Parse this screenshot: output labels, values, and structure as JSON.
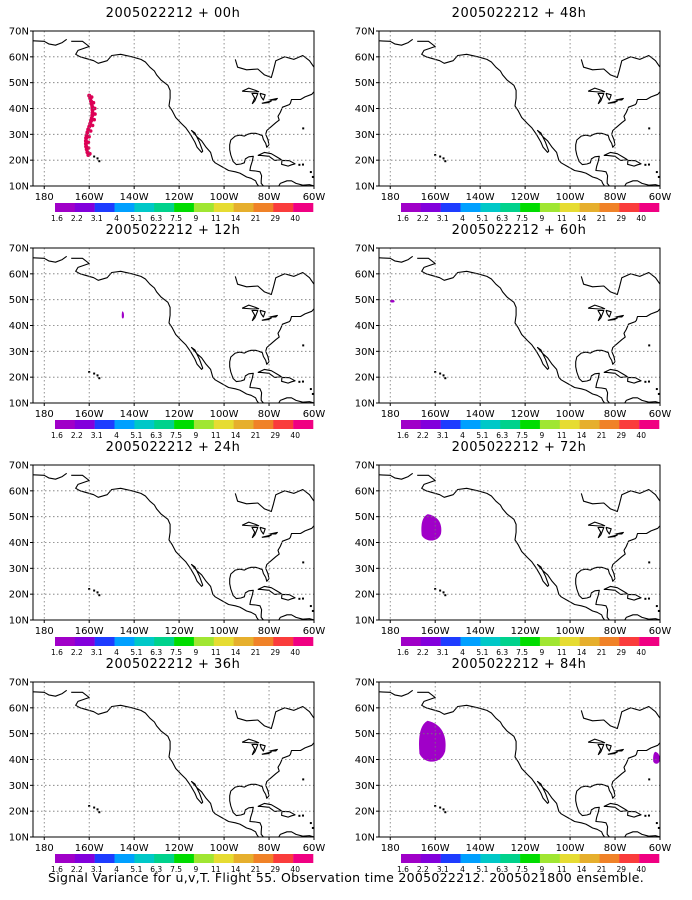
{
  "panels": [
    {
      "title": "2005022212 + 00h",
      "fields": [
        {
          "shape": "dots",
          "color": "#dd0055",
          "lon": [
            -163,
            -157
          ],
          "lat": [
            22,
            45
          ]
        }
      ]
    },
    {
      "title": "2005022212 + 12h",
      "fields": [
        {
          "shape": "blob",
          "color": "#a000c8",
          "lon": [
            -145.5,
            -144.5
          ],
          "lat": [
            42.5,
            45.5
          ]
        }
      ]
    },
    {
      "title": "2005022212 + 24h",
      "fields": []
    },
    {
      "title": "2005022212 + 36h",
      "fields": []
    },
    {
      "title": "2005022212 + 48h",
      "fields": []
    },
    {
      "title": "2005022212 + 60h",
      "fields": [
        {
          "shape": "blob",
          "color": "#a000c8",
          "lon": [
            -180,
            -178
          ],
          "lat": [
            48.8,
            50
          ]
        }
      ]
    },
    {
      "title": "2005022212 + 72h",
      "fields": [
        {
          "shape": "blob",
          "color": "#a000c8",
          "lon": [
            -166,
            -157
          ],
          "lat": [
            40,
            51
          ]
        }
      ]
    },
    {
      "title": "2005022212 + 84h",
      "fields": [
        {
          "shape": "blob",
          "color": "#a000c8",
          "lon": [
            -167,
            -155
          ],
          "lat": [
            38,
            55
          ]
        },
        {
          "shape": "blob",
          "color": "#a000c8",
          "lon": [
            -63,
            -60
          ],
          "lat": [
            38,
            43
          ]
        }
      ]
    }
  ],
  "map": {
    "lon_range": [
      -185,
      -60
    ],
    "lat_range": [
      10,
      70
    ],
    "lon_ticks": [
      -180,
      -160,
      -140,
      -120,
      -100,
      -80,
      -60
    ],
    "lon_labels": [
      "180",
      "160W",
      "140W",
      "120W",
      "100W",
      "80W",
      "60W"
    ],
    "lat_ticks": [
      10,
      20,
      30,
      40,
      50,
      60,
      70
    ],
    "lat_labels": [
      "10N",
      "20N",
      "30N",
      "40N",
      "50N",
      "60N",
      "70N"
    ],
    "gridlines": "dotted"
  },
  "colorbar": {
    "labels": [
      "1.6",
      "2.2",
      "3.1",
      "4",
      "5.1",
      "6.3",
      "7.5",
      "9",
      "11",
      "14",
      "21",
      "29",
      "40"
    ],
    "colors": [
      "#a000c8",
      "#8200dc",
      "#1e3cff",
      "#00a0ff",
      "#00c8c8",
      "#00d28c",
      "#00dc00",
      "#a0e632",
      "#e6dc32",
      "#e6af2d",
      "#f08228",
      "#fa3c3c",
      "#f00082"
    ]
  },
  "caption": "Signal Variance for u,v,T. Flight 55. Observation time 2005022212. 2005021800 ensemble."
}
